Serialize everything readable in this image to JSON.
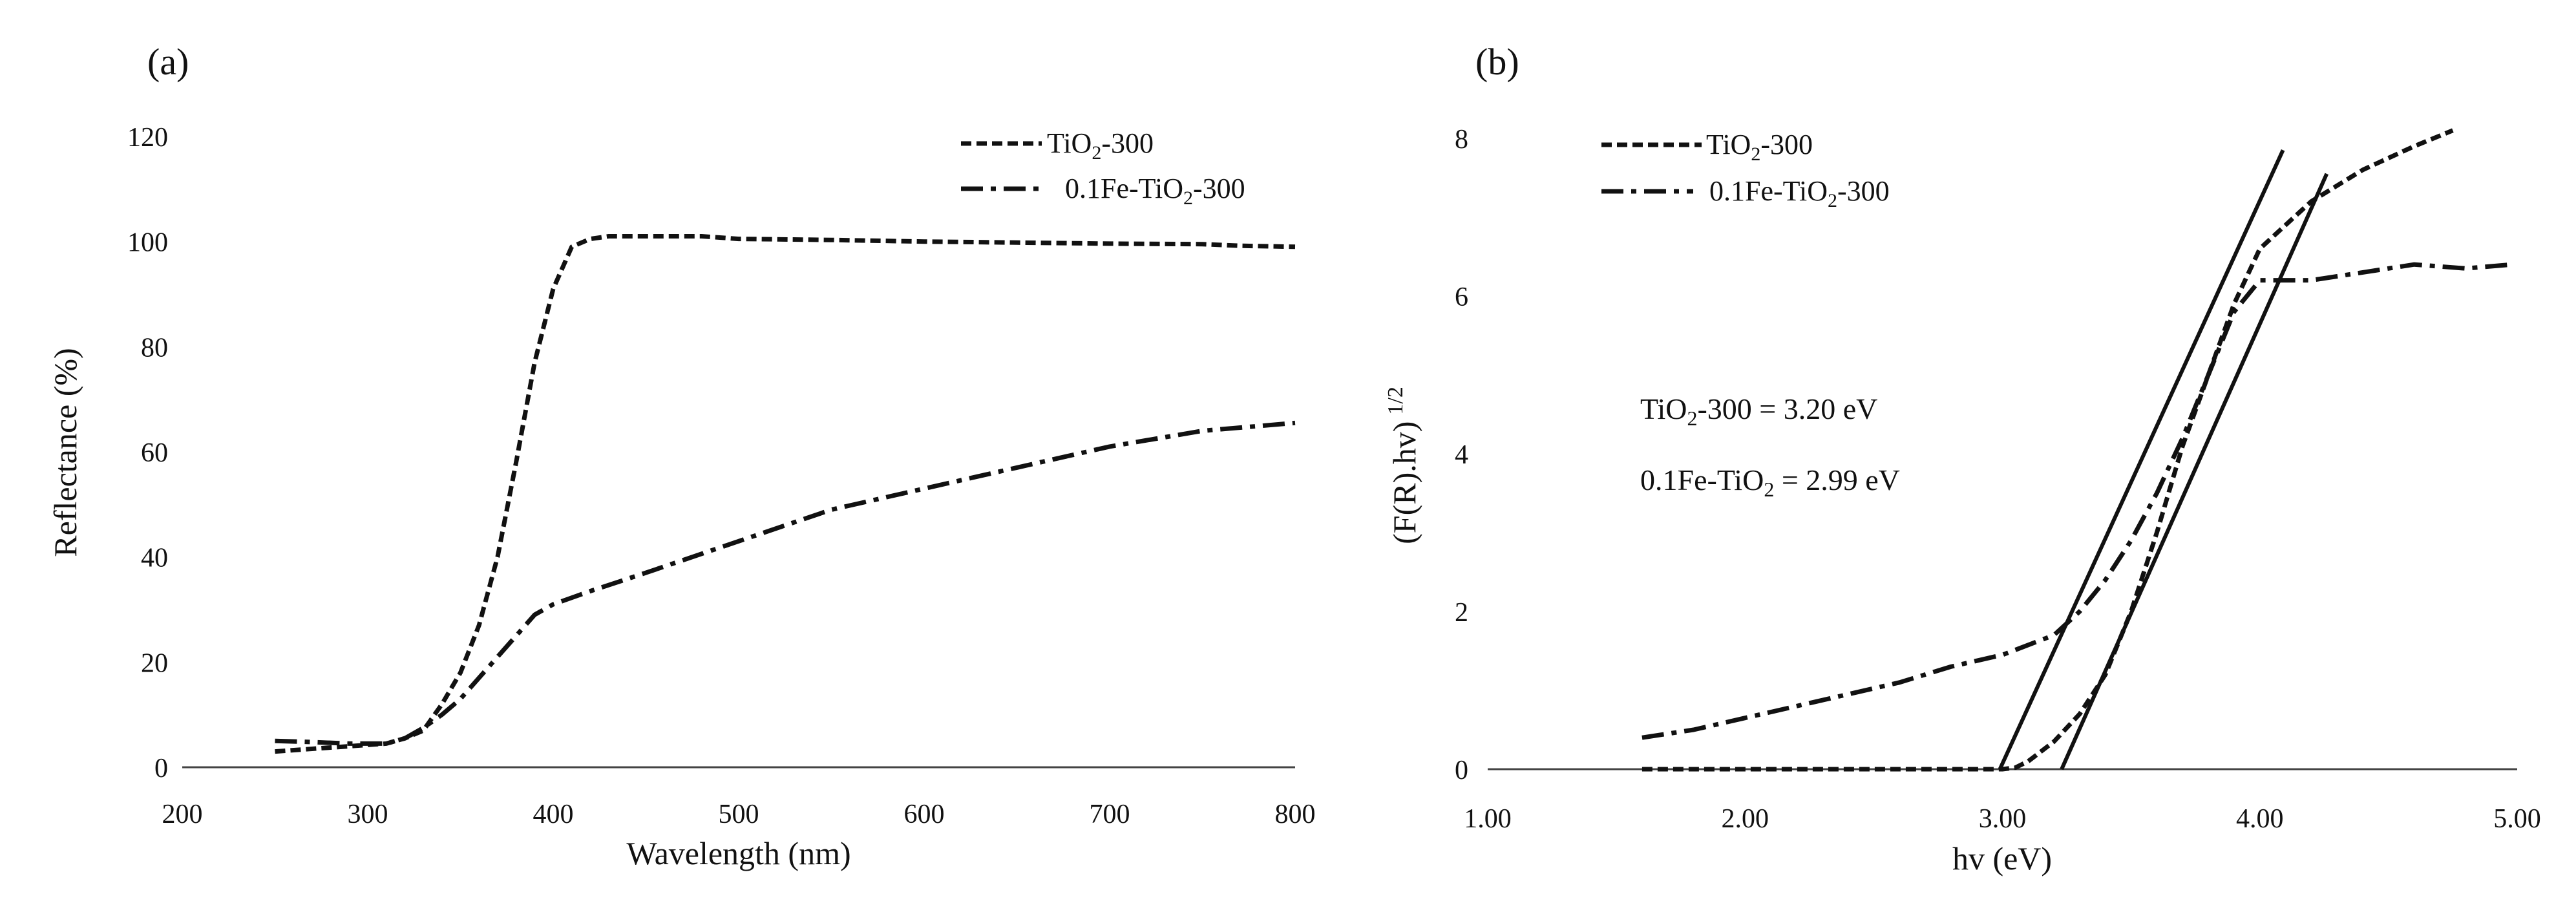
{
  "chart_data": [
    {
      "panel": "(a)",
      "type": "line",
      "xlabel": "Wavelength (nm)",
      "ylabel": "Reflectance (%)",
      "xlim": [
        200,
        800
      ],
      "ylim": [
        0,
        120
      ],
      "x_ticks": [
        "200",
        "300",
        "400",
        "500",
        "600",
        "700",
        "800"
      ],
      "y_ticks": [
        "0",
        "20",
        "40",
        "60",
        "80",
        "100",
        "120"
      ],
      "grid": false,
      "legend_position": "top-right",
      "series": [
        {
          "name": "TiO2-300",
          "legend_main": "TiO",
          "legend_sub": "2",
          "legend_tail": "-300",
          "style": "dashed",
          "x": [
            250,
            270,
            290,
            310,
            320,
            330,
            340,
            350,
            360,
            370,
            380,
            390,
            400,
            410,
            420,
            430,
            450,
            480,
            500,
            550,
            600,
            650,
            700,
            750,
            770,
            800
          ],
          "y": [
            3,
            3.5,
            4,
            4.5,
            5.5,
            7,
            12,
            18,
            27,
            40,
            58,
            77,
            91,
            99,
            100.5,
            101,
            101,
            101,
            100.5,
            100.3,
            100,
            99.8,
            99.6,
            99.5,
            99.2,
            99
          ]
        },
        {
          "name": "0.1Fe-TiO2-300",
          "legend_main": "0.1Fe-TiO",
          "legend_sub": "2",
          "legend_tail": "-300",
          "style": "dash-dot",
          "x": [
            250,
            270,
            290,
            310,
            320,
            330,
            340,
            350,
            360,
            370,
            380,
            390,
            400,
            420,
            450,
            500,
            550,
            600,
            650,
            700,
            750,
            800
          ],
          "y": [
            5,
            4.8,
            4.5,
            4.5,
            5.5,
            7.5,
            10,
            13,
            17,
            21,
            25,
            29,
            31,
            33.5,
            37,
            43,
            49,
            53,
            57,
            61,
            64,
            65.5
          ]
        }
      ]
    },
    {
      "panel": "(b)",
      "type": "line",
      "xlabel": "hv (eV)",
      "ylabel_main": "(F(R).hv)",
      "ylabel_sup": "1/2",
      "xlim": [
        1.0,
        5.0
      ],
      "ylim": [
        0,
        8
      ],
      "x_ticks": [
        "1.00",
        "2.00",
        "3.00",
        "4.00",
        "5.00"
      ],
      "y_ticks": [
        "0",
        "2",
        "4",
        "6",
        "8"
      ],
      "grid": false,
      "legend_position": "top-left",
      "annotations": [
        {
          "main": "TiO",
          "sub": "2",
          "tail": "-300 = 3.20 eV"
        },
        {
          "main": "0.1Fe-TiO",
          "sub": "2",
          "tail": " = 2.99 eV"
        }
      ],
      "series": [
        {
          "name": "TiO2-300",
          "legend_main": "TiO",
          "legend_sub": "2",
          "legend_tail": "-300",
          "style": "dashed",
          "x": [
            1.6,
            2.0,
            2.5,
            2.9,
            3.0,
            3.05,
            3.1,
            3.2,
            3.3,
            3.4,
            3.5,
            3.6,
            3.7,
            3.8,
            3.9,
            4.0,
            4.1,
            4.2,
            4.4,
            4.6,
            4.75
          ],
          "y": [
            0,
            0,
            0,
            0,
            0,
            0.02,
            0.1,
            0.35,
            0.7,
            1.2,
            2.0,
            3.0,
            4.1,
            5.0,
            5.9,
            6.6,
            6.9,
            7.2,
            7.6,
            7.9,
            8.1
          ]
        },
        {
          "name": "0.1Fe-TiO2-300",
          "legend_main": "0.1Fe-TiO",
          "legend_sub": "2",
          "legend_tail": "-300",
          "style": "dash-dot",
          "x": [
            1.6,
            1.8,
            2.0,
            2.2,
            2.4,
            2.6,
            2.8,
            3.0,
            3.2,
            3.3,
            3.4,
            3.5,
            3.6,
            3.7,
            3.8,
            3.9,
            4.0,
            4.2,
            4.4,
            4.6,
            4.8,
            4.98
          ],
          "y": [
            0.4,
            0.5,
            0.65,
            0.8,
            0.95,
            1.1,
            1.3,
            1.45,
            1.7,
            2.0,
            2.4,
            2.9,
            3.5,
            4.2,
            5.0,
            5.8,
            6.2,
            6.2,
            6.3,
            6.4,
            6.35,
            6.4
          ]
        }
      ],
      "tangents": [
        {
          "name": "tangent-tio2",
          "x": [
            3.23,
            4.26
          ],
          "y": [
            0,
            7.55
          ]
        },
        {
          "name": "tangent-fe-tio2",
          "x": [
            2.99,
            4.09
          ],
          "y": [
            0,
            7.85
          ]
        }
      ]
    }
  ]
}
